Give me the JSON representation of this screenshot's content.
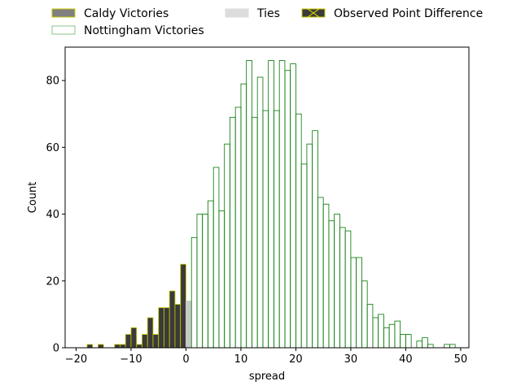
{
  "chart_data": {
    "type": "bar",
    "xlabel": "spread",
    "ylabel": "Count",
    "xlim": [
      -22,
      51.5
    ],
    "ylim": [
      0,
      90
    ],
    "xticks": [
      -20,
      -10,
      0,
      10,
      20,
      30,
      40,
      50
    ],
    "yticks": [
      0,
      20,
      40,
      60,
      80
    ],
    "bin_width": 1,
    "legend_position": "top, above plot",
    "legend": [
      {
        "key": "caldy",
        "label": "Caldy Victories"
      },
      {
        "key": "ties",
        "label": "Ties"
      },
      {
        "key": "observed",
        "label": "Observed Point Difference"
      },
      {
        "key": "nottingham",
        "label": "Nottingham Victories"
      }
    ],
    "colors": {
      "caldy_fill": "#3a3a3a",
      "caldy_edge": "#c8c800",
      "legend_caldy_fill": "#808080",
      "nottingham_edge": "#007700",
      "legend_nottingham_edge": "#88c488",
      "ties_fill": "#c8c8c8",
      "legend_ties_fill": "#dddddd"
    },
    "series": [
      {
        "name": "Caldy Victories",
        "key": "caldy",
        "bin_starts": [
          -19,
          -18,
          -17,
          -16,
          -15,
          -14,
          -13,
          -12,
          -11,
          -10,
          -9,
          -8,
          -7,
          -6,
          -5,
          -4,
          -3,
          -2,
          -1
        ],
        "values": [
          0,
          1,
          0,
          1,
          0,
          0,
          1,
          1,
          4,
          6,
          1,
          4,
          9,
          4,
          12,
          12,
          17,
          13,
          25
        ]
      },
      {
        "name": "Ties",
        "key": "ties",
        "bin_starts": [
          0
        ],
        "values": [
          14
        ]
      },
      {
        "name": "Nottingham Victories",
        "key": "nottingham",
        "bin_starts": [
          1,
          2,
          3,
          4,
          5,
          6,
          7,
          8,
          9,
          10,
          11,
          12,
          13,
          14,
          15,
          16,
          17,
          18,
          19,
          20,
          21,
          22,
          23,
          24,
          25,
          26,
          27,
          28,
          29,
          30,
          31,
          32,
          33,
          34,
          35,
          36,
          37,
          38,
          39,
          40,
          41,
          42,
          43,
          44,
          45,
          46,
          47,
          48
        ],
        "values": [
          33,
          40,
          40,
          44,
          54,
          41,
          61,
          69,
          72,
          79,
          86,
          69,
          81,
          71,
          86,
          71,
          86,
          83,
          85,
          70,
          55,
          61,
          65,
          45,
          43,
          38,
          40,
          36,
          35,
          27,
          27,
          20,
          13,
          9,
          10,
          6,
          7,
          8,
          4,
          4,
          0,
          2,
          3,
          1,
          0,
          0,
          1,
          1
        ]
      }
    ]
  }
}
